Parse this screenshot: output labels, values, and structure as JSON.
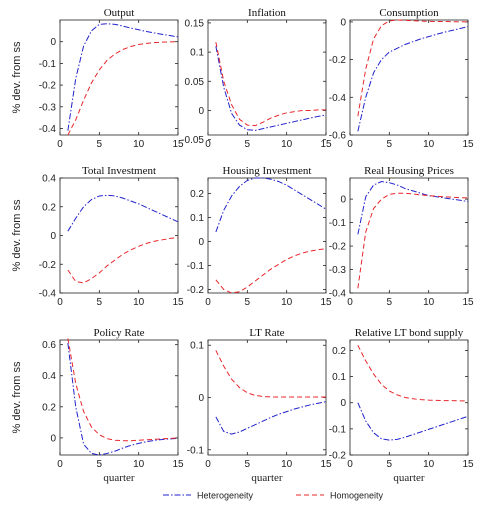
{
  "chart_data": {
    "type": "line",
    "y_axis_label": "% dev. from ss",
    "x_axis_label": "quarter",
    "colors": {
      "Heterogeneity": "#2222cc",
      "Homogeneity": "#e8262a"
    },
    "legend": {
      "placement": "bottom-center",
      "entries": [
        {
          "label": "Heterogeneity",
          "style": "dash-dot",
          "color": "#2222cc"
        },
        {
          "label": "Homogeneity",
          "style": "dashed",
          "color": "#e8262a"
        }
      ]
    },
    "x": [
      1,
      2,
      3,
      4,
      5,
      6,
      7,
      8,
      9,
      10,
      11,
      12,
      13,
      14,
      15
    ],
    "xlim": [
      0,
      15
    ],
    "xticks": [
      0,
      5,
      10,
      15
    ],
    "panels": [
      {
        "title": "Output",
        "ylim": [
          -0.43,
          0.1
        ],
        "yticks": [
          0,
          -0.1,
          -0.2,
          -0.3,
          -0.4
        ],
        "ytick_labels": [
          "0",
          "-0.1",
          "-0.2",
          "-0.3",
          "-0.4"
        ],
        "series": [
          {
            "name": "Heterogeneity",
            "values": [
              -0.41,
              -0.17,
              -0.02,
              0.05,
              0.08,
              0.083,
              0.08,
              0.072,
              0.063,
              0.055,
              0.047,
              0.04,
              0.034,
              0.028,
              0.022
            ]
          },
          {
            "name": "Homogeneity",
            "values": [
              -0.43,
              -0.36,
              -0.27,
              -0.19,
              -0.13,
              -0.085,
              -0.056,
              -0.036,
              -0.022,
              -0.013,
              -0.008,
              -0.004,
              -0.002,
              -0.001,
              0.0
            ]
          }
        ]
      },
      {
        "title": "Inflation",
        "ylim": [
          -0.042,
          0.155
        ],
        "yticks": [
          0.15,
          0.1,
          0.05,
          0,
          -0.05
        ],
        "ytick_labels": [
          "0.15",
          "0.1",
          "0.05",
          "0",
          "-0.05"
        ],
        "series": [
          {
            "name": "Heterogeneity",
            "values": [
              0.11,
              0.04,
              -0.005,
              -0.025,
              -0.033,
              -0.034,
              -0.031,
              -0.028,
              -0.025,
              -0.022,
              -0.019,
              -0.016,
              -0.013,
              -0.01,
              -0.008
            ]
          },
          {
            "name": "Homogeneity",
            "values": [
              0.117,
              0.05,
              0.01,
              -0.015,
              -0.025,
              -0.026,
              -0.02,
              -0.013,
              -0.008,
              -0.004,
              -0.002,
              0.0,
              0.0,
              0.001,
              0.001
            ]
          }
        ]
      },
      {
        "title": "Consumption",
        "ylim": [
          -0.6,
          0.01
        ],
        "yticks": [
          0,
          -0.2,
          -0.4,
          -0.6
        ],
        "ytick_labels": [
          "0",
          "-0.2",
          "-0.4",
          "-0.6"
        ],
        "series": [
          {
            "name": "Heterogeneity",
            "values": [
              -0.58,
              -0.4,
              -0.27,
              -0.2,
              -0.16,
              -0.14,
              -0.12,
              -0.105,
              -0.09,
              -0.078,
              -0.066,
              -0.055,
              -0.045,
              -0.035,
              -0.025
            ]
          },
          {
            "name": "Homogeneity",
            "values": [
              -0.5,
              -0.25,
              -0.09,
              -0.02,
              0.005,
              0.01,
              0.008,
              0.006,
              0.004,
              0.003,
              0.002,
              0.002,
              0.001,
              0.001,
              0.0
            ]
          }
        ]
      },
      {
        "title": "Total Investment",
        "ylim": [
          -0.4,
          0.4
        ],
        "yticks": [
          0.4,
          0.2,
          0,
          -0.2,
          -0.4
        ],
        "ytick_labels": [
          "0.4",
          "0.2",
          "0",
          "-0.2",
          "-0.4"
        ],
        "series": [
          {
            "name": "Heterogeneity",
            "values": [
              0.03,
              0.12,
              0.2,
              0.25,
              0.275,
              0.28,
              0.275,
              0.26,
              0.24,
              0.22,
              0.195,
              0.17,
              0.145,
              0.12,
              0.095
            ]
          },
          {
            "name": "Homogeneity",
            "values": [
              -0.24,
              -0.32,
              -0.33,
              -0.3,
              -0.26,
              -0.21,
              -0.17,
              -0.13,
              -0.1,
              -0.075,
              -0.055,
              -0.04,
              -0.03,
              -0.02,
              -0.015
            ]
          }
        ]
      },
      {
        "title": "Housing Investment",
        "ylim": [
          -0.215,
          0.265
        ],
        "yticks": [
          0.2,
          0.1,
          0,
          -0.1,
          -0.2
        ],
        "ytick_labels": [
          "0.2",
          "0.1",
          "0",
          "-0.1",
          "-0.2"
        ],
        "series": [
          {
            "name": "Heterogeneity",
            "values": [
              0.04,
              0.13,
              0.19,
              0.23,
              0.255,
              0.265,
              0.265,
              0.26,
              0.25,
              0.235,
              0.215,
              0.195,
              0.175,
              0.155,
              0.135
            ]
          },
          {
            "name": "Homogeneity",
            "values": [
              -0.16,
              -0.2,
              -0.215,
              -0.21,
              -0.19,
              -0.165,
              -0.14,
              -0.115,
              -0.095,
              -0.075,
              -0.06,
              -0.048,
              -0.04,
              -0.034,
              -0.03
            ]
          }
        ]
      },
      {
        "title": "Real Housing Prices",
        "ylim": [
          -0.4,
          0.09
        ],
        "yticks": [
          0,
          -0.1,
          -0.2,
          -0.3,
          -0.4
        ],
        "ytick_labels": [
          "0",
          "-0.1",
          "-0.2",
          "-0.3",
          "-0.4"
        ],
        "series": [
          {
            "name": "Heterogeneity",
            "values": [
              -0.15,
              0.01,
              0.06,
              0.075,
              0.07,
              0.06,
              0.045,
              0.035,
              0.025,
              0.015,
              0.01,
              0.005,
              0.0,
              -0.005,
              -0.01
            ]
          },
          {
            "name": "Homogeneity",
            "values": [
              -0.38,
              -0.14,
              -0.04,
              0.0,
              0.02,
              0.025,
              0.025,
              0.022,
              0.018,
              0.015,
              0.012,
              0.01,
              0.008,
              0.006,
              0.005
            ]
          }
        ]
      },
      {
        "title": "Policy Rate",
        "ylim": [
          -0.11,
          0.63
        ],
        "yticks": [
          0.6,
          0.4,
          0.2,
          0
        ],
        "ytick_labels": [
          "0.6",
          "0.4",
          "0.2",
          "0"
        ],
        "series": [
          {
            "name": "Heterogeneity",
            "values": [
              0.61,
              0.2,
              -0.04,
              -0.1,
              -0.11,
              -0.1,
              -0.085,
              -0.065,
              -0.048,
              -0.035,
              -0.024,
              -0.016,
              -0.01,
              -0.006,
              -0.003
            ]
          },
          {
            "name": "Homogeneity",
            "values": [
              0.64,
              0.35,
              0.17,
              0.07,
              0.02,
              -0.005,
              -0.015,
              -0.018,
              -0.018,
              -0.015,
              -0.012,
              -0.009,
              -0.006,
              -0.003,
              -0.001
            ]
          }
        ]
      },
      {
        "title": "LT Rate",
        "ylim": [
          -0.11,
          0.11
        ],
        "yticks": [
          0.1,
          0,
          -0.1
        ],
        "ytick_labels": [
          "0.1",
          "0",
          "-0.1"
        ],
        "series": [
          {
            "name": "Heterogeneity",
            "values": [
              -0.037,
              -0.065,
              -0.07,
              -0.066,
              -0.059,
              -0.052,
              -0.045,
              -0.038,
              -0.032,
              -0.027,
              -0.022,
              -0.018,
              -0.014,
              -0.011,
              -0.008
            ]
          },
          {
            "name": "Homogeneity",
            "values": [
              0.09,
              0.06,
              0.035,
              0.019,
              0.009,
              0.004,
              0.002,
              0.001,
              0.001,
              0.001,
              0.001,
              0.001,
              0.001,
              0.001,
              0.001
            ]
          }
        ]
      },
      {
        "title": "Relative LT bond supply",
        "ylim": [
          -0.2,
          0.24
        ],
        "yticks": [
          0.2,
          0.1,
          0,
          -0.1,
          -0.2
        ],
        "ytick_labels": [
          "0.2",
          "0.1",
          "0",
          "-0.1",
          "-0.2"
        ],
        "series": [
          {
            "name": "Heterogeneity",
            "values": [
              0.0,
              -0.07,
              -0.115,
              -0.138,
              -0.143,
              -0.14,
              -0.132,
              -0.122,
              -0.112,
              -0.102,
              -0.092,
              -0.082,
              -0.072,
              -0.062,
              -0.052
            ]
          },
          {
            "name": "Homogeneity",
            "values": [
              0.22,
              0.16,
              0.11,
              0.07,
              0.045,
              0.03,
              0.02,
              0.015,
              0.012,
              0.01,
              0.009,
              0.008,
              0.008,
              0.007,
              0.007
            ]
          }
        ]
      }
    ]
  }
}
